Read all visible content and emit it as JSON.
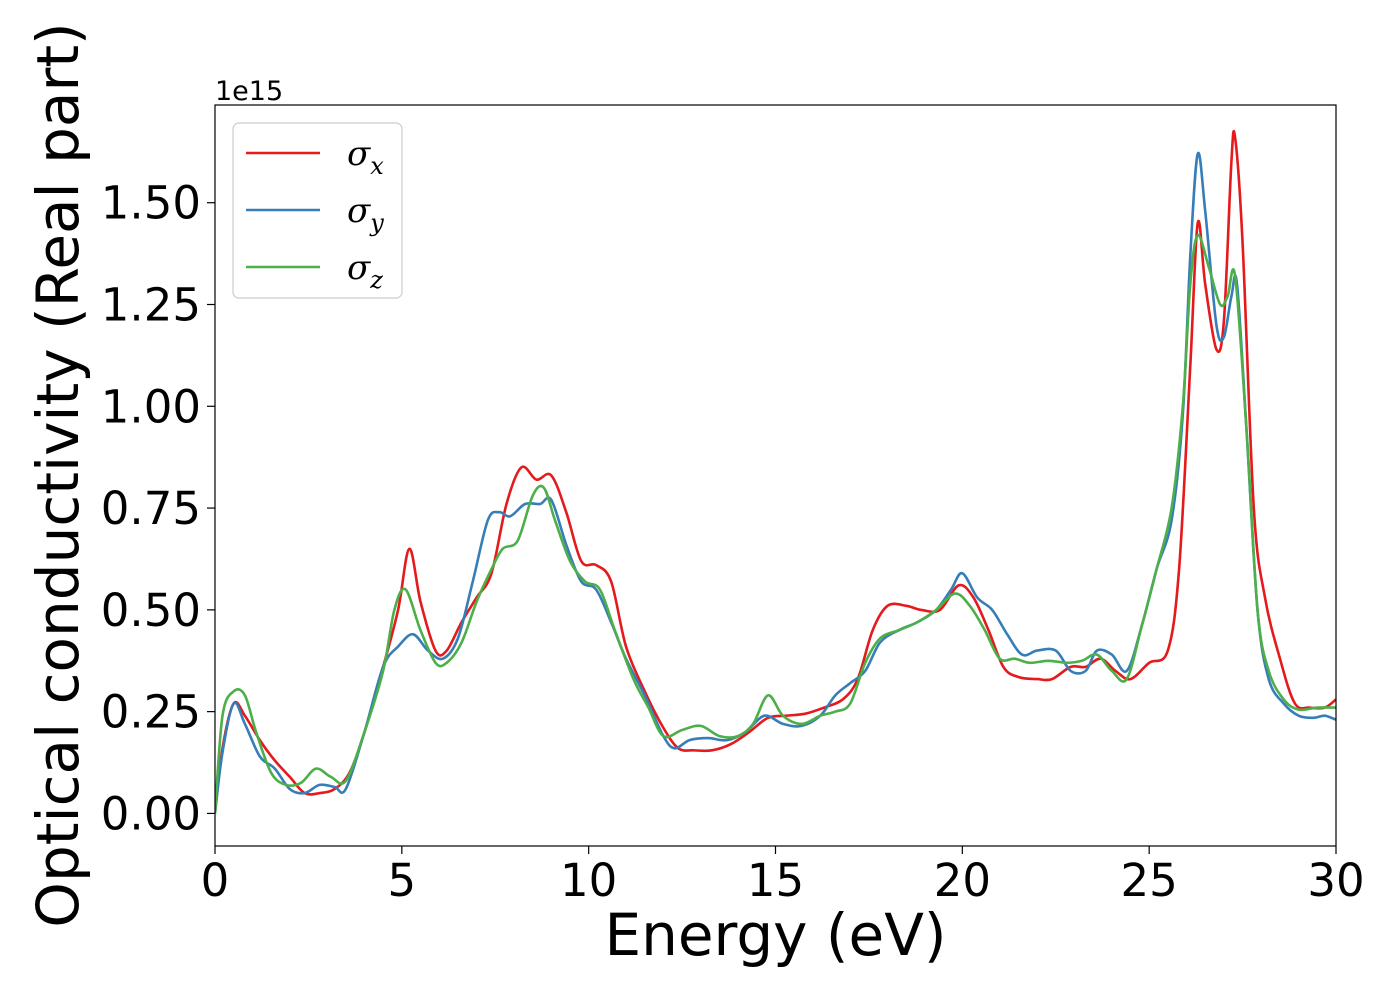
{
  "chart_data": {
    "type": "line",
    "xlabel": "Energy (eV)",
    "ylabel": "Optical conductivity (Real part)",
    "y_offset_label": "1e15",
    "xlim": [
      0,
      30
    ],
    "ylim": [
      -0.08,
      1.74
    ],
    "x_ticks": [
      0,
      5,
      10,
      15,
      20,
      25,
      30
    ],
    "x_tick_labels": [
      "0",
      "5",
      "10",
      "15",
      "20",
      "25",
      "30"
    ],
    "y_ticks": [
      0,
      0.25,
      0.5,
      0.75,
      1.0,
      1.25,
      1.5
    ],
    "y_tick_labels": [
      "0.00",
      "0.25",
      "0.50",
      "0.75",
      "1.00",
      "1.25",
      "1.50"
    ],
    "grid": false,
    "legend_position": "top-left",
    "series": [
      {
        "name": "σx",
        "symbol": "σ",
        "subscript": "x",
        "color": "#e41a1c",
        "points": [
          [
            0,
            0
          ],
          [
            0.2,
            0.16
          ],
          [
            0.5,
            0.27
          ],
          [
            0.8,
            0.24
          ],
          [
            1.2,
            0.18
          ],
          [
            1.6,
            0.13
          ],
          [
            2.0,
            0.09
          ],
          [
            2.4,
            0.05
          ],
          [
            2.8,
            0.05
          ],
          [
            3.2,
            0.06
          ],
          [
            3.6,
            0.1
          ],
          [
            4.0,
            0.2
          ],
          [
            4.5,
            0.36
          ],
          [
            4.9,
            0.5
          ],
          [
            5.2,
            0.65
          ],
          [
            5.5,
            0.52
          ],
          [
            5.9,
            0.4
          ],
          [
            6.2,
            0.4
          ],
          [
            6.6,
            0.47
          ],
          [
            7.0,
            0.53
          ],
          [
            7.4,
            0.59
          ],
          [
            7.8,
            0.76
          ],
          [
            8.2,
            0.85
          ],
          [
            8.6,
            0.82
          ],
          [
            9.0,
            0.83
          ],
          [
            9.4,
            0.74
          ],
          [
            9.8,
            0.62
          ],
          [
            10.2,
            0.61
          ],
          [
            10.6,
            0.57
          ],
          [
            11.0,
            0.41
          ],
          [
            11.5,
            0.3
          ],
          [
            12.0,
            0.21
          ],
          [
            12.4,
            0.16
          ],
          [
            12.8,
            0.155
          ],
          [
            13.3,
            0.155
          ],
          [
            13.8,
            0.17
          ],
          [
            14.3,
            0.2
          ],
          [
            14.8,
            0.235
          ],
          [
            15.3,
            0.24
          ],
          [
            15.8,
            0.245
          ],
          [
            16.3,
            0.26
          ],
          [
            16.8,
            0.28
          ],
          [
            17.2,
            0.33
          ],
          [
            17.6,
            0.45
          ],
          [
            18.0,
            0.51
          ],
          [
            18.5,
            0.51
          ],
          [
            18.9,
            0.5
          ],
          [
            19.4,
            0.5
          ],
          [
            19.9,
            0.56
          ],
          [
            20.3,
            0.53
          ],
          [
            20.7,
            0.45
          ],
          [
            21.1,
            0.36
          ],
          [
            21.5,
            0.335
          ],
          [
            22.0,
            0.33
          ],
          [
            22.4,
            0.33
          ],
          [
            22.9,
            0.36
          ],
          [
            23.3,
            0.36
          ],
          [
            23.7,
            0.38
          ],
          [
            24.1,
            0.35
          ],
          [
            24.5,
            0.33
          ],
          [
            25.0,
            0.37
          ],
          [
            25.5,
            0.4
          ],
          [
            25.8,
            0.6
          ],
          [
            26.1,
            1.1
          ],
          [
            26.3,
            1.45
          ],
          [
            26.5,
            1.3
          ],
          [
            26.8,
            1.14
          ],
          [
            27.0,
            1.21
          ],
          [
            27.2,
            1.6
          ],
          [
            27.3,
            1.66
          ],
          [
            27.5,
            1.4
          ],
          [
            27.8,
            0.75
          ],
          [
            28.1,
            0.53
          ],
          [
            28.5,
            0.38
          ],
          [
            28.9,
            0.27
          ],
          [
            29.3,
            0.26
          ],
          [
            29.7,
            0.26
          ],
          [
            30.0,
            0.28
          ]
        ]
      },
      {
        "name": "σy",
        "symbol": "σ",
        "subscript": "y",
        "color": "#377eb8",
        "points": [
          [
            0,
            0
          ],
          [
            0.2,
            0.15
          ],
          [
            0.5,
            0.27
          ],
          [
            0.8,
            0.22
          ],
          [
            1.2,
            0.14
          ],
          [
            1.6,
            0.11
          ],
          [
            2.0,
            0.06
          ],
          [
            2.4,
            0.05
          ],
          [
            2.8,
            0.07
          ],
          [
            3.2,
            0.065
          ],
          [
            3.5,
            0.06
          ],
          [
            4.0,
            0.2
          ],
          [
            4.5,
            0.36
          ],
          [
            4.9,
            0.41
          ],
          [
            5.3,
            0.44
          ],
          [
            5.7,
            0.4
          ],
          [
            6.1,
            0.38
          ],
          [
            6.5,
            0.43
          ],
          [
            6.9,
            0.57
          ],
          [
            7.3,
            0.72
          ],
          [
            7.6,
            0.74
          ],
          [
            7.9,
            0.73
          ],
          [
            8.3,
            0.76
          ],
          [
            8.7,
            0.76
          ],
          [
            9.0,
            0.77
          ],
          [
            9.4,
            0.66
          ],
          [
            9.8,
            0.57
          ],
          [
            10.2,
            0.55
          ],
          [
            10.6,
            0.47
          ],
          [
            11.0,
            0.38
          ],
          [
            11.5,
            0.29
          ],
          [
            12.0,
            0.19
          ],
          [
            12.3,
            0.16
          ],
          [
            12.7,
            0.18
          ],
          [
            13.2,
            0.185
          ],
          [
            13.7,
            0.18
          ],
          [
            14.2,
            0.2
          ],
          [
            14.7,
            0.24
          ],
          [
            15.2,
            0.22
          ],
          [
            15.7,
            0.215
          ],
          [
            16.2,
            0.24
          ],
          [
            16.6,
            0.29
          ],
          [
            17.0,
            0.32
          ],
          [
            17.4,
            0.35
          ],
          [
            17.8,
            0.42
          ],
          [
            18.3,
            0.45
          ],
          [
            18.8,
            0.47
          ],
          [
            19.3,
            0.5
          ],
          [
            19.7,
            0.55
          ],
          [
            20.0,
            0.59
          ],
          [
            20.4,
            0.53
          ],
          [
            20.8,
            0.5
          ],
          [
            21.2,
            0.44
          ],
          [
            21.6,
            0.39
          ],
          [
            22.0,
            0.4
          ],
          [
            22.5,
            0.4
          ],
          [
            22.9,
            0.35
          ],
          [
            23.3,
            0.35
          ],
          [
            23.6,
            0.4
          ],
          [
            24.0,
            0.39
          ],
          [
            24.4,
            0.35
          ],
          [
            24.8,
            0.46
          ],
          [
            25.2,
            0.6
          ],
          [
            25.6,
            0.72
          ],
          [
            25.9,
            0.98
          ],
          [
            26.1,
            1.37
          ],
          [
            26.3,
            1.62
          ],
          [
            26.5,
            1.48
          ],
          [
            26.8,
            1.2
          ],
          [
            27.0,
            1.17
          ],
          [
            27.2,
            1.27
          ],
          [
            27.35,
            1.3
          ],
          [
            27.6,
            0.95
          ],
          [
            27.9,
            0.5
          ],
          [
            28.2,
            0.33
          ],
          [
            28.6,
            0.27
          ],
          [
            29.0,
            0.24
          ],
          [
            29.4,
            0.235
          ],
          [
            29.7,
            0.24
          ],
          [
            30.0,
            0.23
          ]
        ]
      },
      {
        "name": "σz",
        "symbol": "σ",
        "subscript": "z",
        "color": "#4daf4a",
        "points": [
          [
            0,
            0
          ],
          [
            0.2,
            0.24
          ],
          [
            0.5,
            0.3
          ],
          [
            0.8,
            0.29
          ],
          [
            1.1,
            0.2
          ],
          [
            1.5,
            0.1
          ],
          [
            1.9,
            0.07
          ],
          [
            2.3,
            0.075
          ],
          [
            2.7,
            0.11
          ],
          [
            3.1,
            0.09
          ],
          [
            3.5,
            0.08
          ],
          [
            4.0,
            0.2
          ],
          [
            4.5,
            0.35
          ],
          [
            4.8,
            0.5
          ],
          [
            5.1,
            0.55
          ],
          [
            5.5,
            0.45
          ],
          [
            5.9,
            0.37
          ],
          [
            6.2,
            0.37
          ],
          [
            6.6,
            0.42
          ],
          [
            7.0,
            0.52
          ],
          [
            7.4,
            0.6
          ],
          [
            7.7,
            0.65
          ],
          [
            8.1,
            0.67
          ],
          [
            8.5,
            0.78
          ],
          [
            8.8,
            0.8
          ],
          [
            9.1,
            0.72
          ],
          [
            9.5,
            0.62
          ],
          [
            9.9,
            0.57
          ],
          [
            10.3,
            0.55
          ],
          [
            10.7,
            0.45
          ],
          [
            11.2,
            0.33
          ],
          [
            11.6,
            0.26
          ],
          [
            12.0,
            0.19
          ],
          [
            12.5,
            0.205
          ],
          [
            13.0,
            0.215
          ],
          [
            13.5,
            0.19
          ],
          [
            14.0,
            0.19
          ],
          [
            14.4,
            0.22
          ],
          [
            14.8,
            0.29
          ],
          [
            15.2,
            0.24
          ],
          [
            15.7,
            0.22
          ],
          [
            16.2,
            0.24
          ],
          [
            16.6,
            0.25
          ],
          [
            17.0,
            0.27
          ],
          [
            17.4,
            0.37
          ],
          [
            17.8,
            0.43
          ],
          [
            18.3,
            0.45
          ],
          [
            18.8,
            0.47
          ],
          [
            19.3,
            0.5
          ],
          [
            19.8,
            0.54
          ],
          [
            20.2,
            0.51
          ],
          [
            20.6,
            0.45
          ],
          [
            21.0,
            0.38
          ],
          [
            21.4,
            0.38
          ],
          [
            21.8,
            0.37
          ],
          [
            22.3,
            0.375
          ],
          [
            22.8,
            0.37
          ],
          [
            23.2,
            0.375
          ],
          [
            23.6,
            0.39
          ],
          [
            24.0,
            0.35
          ],
          [
            24.4,
            0.33
          ],
          [
            24.8,
            0.46
          ],
          [
            25.2,
            0.6
          ],
          [
            25.6,
            0.75
          ],
          [
            25.9,
            1.0
          ],
          [
            26.1,
            1.3
          ],
          [
            26.3,
            1.42
          ],
          [
            26.6,
            1.34
          ],
          [
            26.9,
            1.25
          ],
          [
            27.1,
            1.27
          ],
          [
            27.3,
            1.32
          ],
          [
            27.6,
            0.95
          ],
          [
            27.9,
            0.5
          ],
          [
            28.2,
            0.35
          ],
          [
            28.6,
            0.28
          ],
          [
            29.0,
            0.255
          ],
          [
            29.5,
            0.26
          ],
          [
            30.0,
            0.26
          ]
        ]
      }
    ]
  }
}
